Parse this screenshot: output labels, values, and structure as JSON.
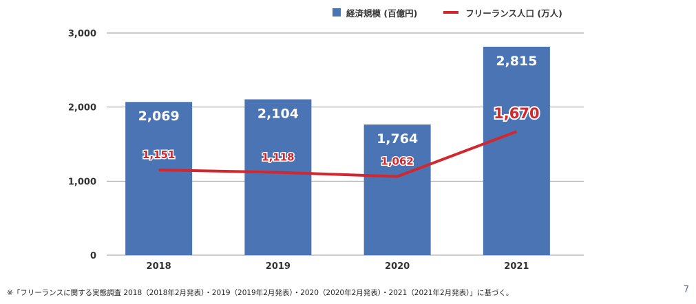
{
  "legend": {
    "bar_label": "経済規模 (百億円)",
    "line_label": "フリーランス人口 (万人)"
  },
  "colors": {
    "bar": "#4a74b4",
    "line": "#d0282e",
    "grid": "#9a9a9a",
    "axis_text": "#333333"
  },
  "chart_data": {
    "type": "bar",
    "categories": [
      "2018",
      "2019",
      "2020",
      "2021"
    ],
    "series": [
      {
        "name": "経済規模 (百億円)",
        "type": "bar",
        "values": [
          2069,
          2104,
          1764,
          2815
        ],
        "labels": [
          "2,069",
          "2,104",
          "1,764",
          "2,815"
        ]
      },
      {
        "name": "フリーランス人口 (万人)",
        "type": "line",
        "values": [
          1151,
          1118,
          1062,
          1670
        ],
        "labels": [
          "1,151",
          "1,118",
          "1,062",
          "1,670"
        ]
      }
    ],
    "ylim": [
      0,
      3000
    ],
    "yticks": [
      0,
      1000,
      2000,
      3000
    ],
    "ytick_labels": [
      "0",
      "1,000",
      "2,000",
      "3,000"
    ],
    "grid": true,
    "legend_position": "top-right"
  },
  "footnote": "※「フリーランスに関する実態調査 2018（2018年2月発表）・2019（2019年2月発表）・2020（2020年2月発表）・2021（2021年2月発表）」に基づく。",
  "page_number": "7"
}
